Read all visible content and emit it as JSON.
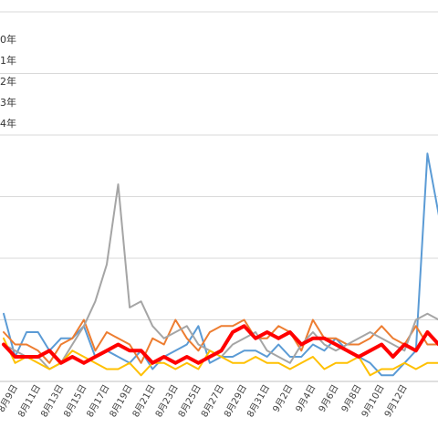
{
  "chart_data": {
    "type": "line",
    "ylim": [
      0,
      7
    ],
    "grid": true,
    "legend_placement": "top-left",
    "legend": [
      {
        "label": "0年",
        "color": "#5b9bd5"
      },
      {
        "label": "1年",
        "color": "#ed7d31"
      },
      {
        "label": "2年",
        "color": "#a5a5a5"
      },
      {
        "label": "3年",
        "color": "#ffc000"
      },
      {
        "label": "4年",
        "color": "#ff0000"
      }
    ],
    "tick_labels": [
      "8月9日",
      "8月11日",
      "8月13日",
      "8月15日",
      "8月17日",
      "8月19日",
      "8月21日",
      "8月23日",
      "8月25日",
      "8月27日",
      "8月29日",
      "8月31日",
      "9月2日",
      "9月4日",
      "9月6日",
      "9月8日",
      "9月10日",
      "9月12日"
    ],
    "series": [
      {
        "name": "0年",
        "color": "#5b9bd5",
        "width": 2,
        "values": [
          1.1,
          0.4,
          0.8,
          0.8,
          0.5,
          0.7,
          0.7,
          0.9,
          0.4,
          0.5,
          0.4,
          0.3,
          0.5,
          0.2,
          0.4,
          0.5,
          0.6,
          0.9,
          0.3,
          0.4,
          0.4,
          0.5,
          0.5,
          0.4,
          0.6,
          0.4,
          0.4,
          0.6,
          0.5,
          0.7,
          0.5,
          0.4,
          0.3,
          0.1,
          0.1,
          0.3,
          0.5,
          3.7,
          2.7
        ]
      },
      {
        "name": "1年",
        "color": "#ed7d31",
        "width": 2,
        "values": [
          0.8,
          0.6,
          0.6,
          0.5,
          0.3,
          0.6,
          0.7,
          1.0,
          0.5,
          0.8,
          0.7,
          0.6,
          0.3,
          0.7,
          0.6,
          1.0,
          0.7,
          0.5,
          0.8,
          0.9,
          0.9,
          1.0,
          0.7,
          0.7,
          0.9,
          0.8,
          0.5,
          1.0,
          0.7,
          0.7,
          0.6,
          0.6,
          0.7,
          0.9,
          0.7,
          0.6,
          0.9,
          0.6,
          0.6
        ]
      },
      {
        "name": "2年",
        "color": "#a5a5a5",
        "width": 2,
        "values": [
          0.6,
          0.5,
          0.4,
          0.4,
          0.2,
          0.3,
          0.6,
          0.9,
          1.3,
          1.9,
          3.2,
          1.2,
          1.3,
          0.9,
          0.7,
          0.8,
          0.9,
          0.6,
          0.5,
          0.4,
          0.6,
          0.7,
          0.8,
          0.5,
          0.4,
          0.3,
          0.6,
          0.8,
          0.6,
          0.5,
          0.6,
          0.7,
          0.8,
          0.7,
          0.6,
          0.5,
          1.0,
          1.1,
          1.0
        ]
      },
      {
        "name": "3年",
        "color": "#ffc000",
        "width": 2,
        "values": [
          0.7,
          0.3,
          0.4,
          0.3,
          0.2,
          0.3,
          0.5,
          0.4,
          0.3,
          0.2,
          0.2,
          0.3,
          0.1,
          0.3,
          0.3,
          0.2,
          0.3,
          0.2,
          0.5,
          0.4,
          0.3,
          0.3,
          0.4,
          0.3,
          0.3,
          0.2,
          0.3,
          0.4,
          0.2,
          0.3,
          0.3,
          0.4,
          0.1,
          0.2,
          0.2,
          0.3,
          0.2,
          0.3,
          0.3
        ]
      },
      {
        "name": "4年",
        "color": "#ff0000",
        "width": 4,
        "values": [
          0.6,
          0.4,
          0.4,
          0.4,
          0.5,
          0.3,
          0.4,
          0.3,
          0.4,
          0.5,
          0.6,
          0.5,
          0.5,
          0.3,
          0.4,
          0.3,
          0.4,
          0.3,
          0.4,
          0.5,
          0.8,
          0.9,
          0.7,
          0.8,
          0.7,
          0.8,
          0.6,
          0.7,
          0.7,
          0.6,
          0.5,
          0.4,
          0.5,
          0.6,
          0.4,
          0.6,
          0.5,
          0.8,
          0.6
        ]
      }
    ]
  }
}
